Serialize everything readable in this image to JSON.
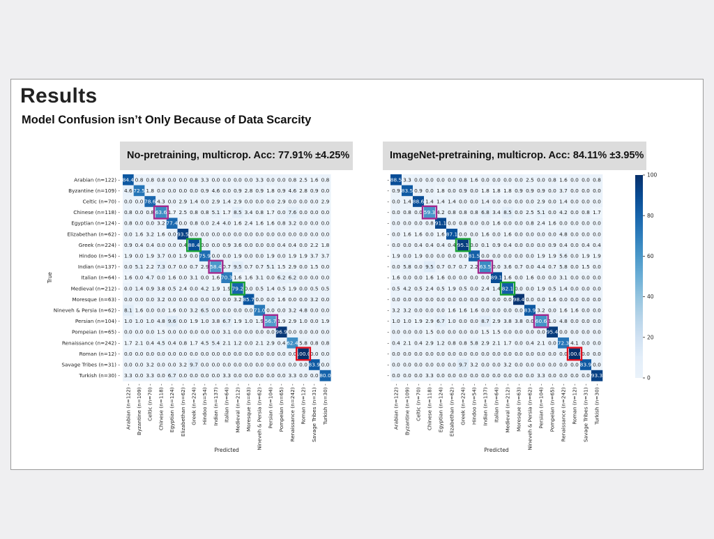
{
  "slide": {
    "title": "Results",
    "subtitle": "Model Confusion isn’t Only Because of Data Scarcity"
  },
  "colorbar": {
    "ticks": [
      "100",
      "80",
      "60",
      "40",
      "20",
      "0"
    ]
  },
  "chart_data": [
    {
      "type": "heatmap",
      "title": "No-pretraining, multicrop. Acc: 77.91% ±4.25%",
      "xlabel": "Predicted",
      "ylabel": "True",
      "categories": [
        "Arabian (n=122)",
        "Byzantine (n=109)",
        "Celtic (n=70)",
        "Chinese (n=118)",
        "Egyptian (n=124)",
        "Elizabethan (n=62)",
        "Greek (n=224)",
        "Hindoo (n=54)",
        "Indian (n=137)",
        "Italian (n=64)",
        "Medieval (n=212)",
        "Moresque (n=63)",
        "Nineveh & Persia (n=62)",
        "Persian (n=104)",
        "Pompeian (n=65)",
        "Renaissance (n=242)",
        "Roman (n=12)",
        "Savage Tribes (n=31)",
        "Turkish (n=30)"
      ],
      "values": [
        [
          "84.4",
          "0.8",
          "0.8",
          "0.8",
          "0.0",
          "0.0",
          "0.8",
          "3.3",
          "0.0",
          "0.0",
          "0.0",
          "0.0",
          "3.3",
          "0.0",
          "0.0",
          "0.8",
          "2.5",
          "1.6",
          "0.8"
        ],
        [
          "4.6",
          "72.5",
          "1.8",
          "0.0",
          "0.0",
          "0.0",
          "0.0",
          "0.9",
          "4.6",
          "0.0",
          "0.9",
          "2.8",
          "0.9",
          "1.8",
          "0.9",
          "4.6",
          "2.8",
          "0.9",
          "0.0"
        ],
        [
          "0.0",
          "0.0",
          "78.6",
          "4.3",
          "0.0",
          "2.9",
          "1.4",
          "0.0",
          "2.9",
          "1.4",
          "2.9",
          "0.0",
          "0.0",
          "0.0",
          "2.9",
          "0.0",
          "0.0",
          "0.0",
          "2.9"
        ],
        [
          "0.8",
          "0.0",
          "0.8",
          "63.6",
          "1.7",
          "2.5",
          "0.8",
          "0.8",
          "5.1",
          "1.7",
          "8.5",
          "3.4",
          "0.8",
          "1.7",
          "0.0",
          "7.6",
          "0.0",
          "0.0",
          "0.0"
        ],
        [
          "0.8",
          "0.0",
          "0.0",
          "3.2",
          "77.4",
          "0.0",
          "0.8",
          "0.0",
          "2.4",
          "4.0",
          "1.6",
          "2.4",
          "1.6",
          "1.6",
          "0.8",
          "3.2",
          "0.0",
          "0.0",
          "0.0"
        ],
        [
          "0.0",
          "1.6",
          "3.2",
          "1.6",
          "0.0",
          "93.5",
          "0.0",
          "0.0",
          "0.0",
          "0.0",
          "0.0",
          "0.0",
          "0.0",
          "0.0",
          "0.0",
          "0.0",
          "0.0",
          "0.0",
          "0.0"
        ],
        [
          "0.9",
          "0.4",
          "0.4",
          "0.0",
          "0.0",
          "0.4",
          "88.4",
          "0.0",
          "0.0",
          "0.9",
          "3.6",
          "0.0",
          "0.0",
          "0.0",
          "0.4",
          "0.4",
          "0.0",
          "2.2",
          "1.8"
        ],
        [
          "1.9",
          "0.0",
          "1.9",
          "3.7",
          "0.0",
          "1.9",
          "0.0",
          "75.9",
          "0.0",
          "0.0",
          "1.9",
          "0.0",
          "0.0",
          "1.9",
          "0.0",
          "1.9",
          "1.9",
          "3.7",
          "3.7"
        ],
        [
          "0.0",
          "5.1",
          "2.2",
          "7.3",
          "0.7",
          "0.0",
          "0.7",
          "2.9",
          "58.4",
          "0.7",
          "9.5",
          "0.7",
          "0.7",
          "5.1",
          "1.5",
          "2.9",
          "0.0",
          "1.5",
          "0.0"
        ],
        [
          "1.6",
          "0.0",
          "4.7",
          "0.0",
          "1.6",
          "0.0",
          "3.1",
          "0.0",
          "1.6",
          "70.3",
          "1.6",
          "1.6",
          "3.1",
          "0.0",
          "6.2",
          "6.2",
          "0.0",
          "0.0",
          "0.0"
        ],
        [
          "0.0",
          "1.4",
          "0.9",
          "3.8",
          "0.5",
          "2.4",
          "0.0",
          "4.2",
          "1.9",
          "1.9",
          "79.2",
          "0.0",
          "0.5",
          "1.4",
          "0.5",
          "1.9",
          "0.0",
          "0.5",
          "0.5"
        ],
        [
          "0.0",
          "0.0",
          "0.0",
          "3.2",
          "0.0",
          "0.0",
          "0.0",
          "0.0",
          "0.0",
          "0.0",
          "3.2",
          "85.7",
          "0.0",
          "0.0",
          "1.6",
          "0.0",
          "0.0",
          "3.2",
          "0.0"
        ],
        [
          "8.1",
          "1.6",
          "0.0",
          "0.0",
          "1.6",
          "0.0",
          "3.2",
          "6.5",
          "0.0",
          "0.0",
          "0.0",
          "0.0",
          "71.0",
          "0.0",
          "0.0",
          "3.2",
          "4.8",
          "0.0",
          "0.0"
        ],
        [
          "1.0",
          "1.0",
          "1.0",
          "4.8",
          "9.6",
          "0.0",
          "1.9",
          "1.0",
          "3.8",
          "6.7",
          "1.9",
          "1.0",
          "1.9",
          "56.7",
          "1.9",
          "2.9",
          "1.0",
          "0.0",
          "1.9"
        ],
        [
          "0.0",
          "0.0",
          "0.0",
          "1.5",
          "0.0",
          "0.0",
          "0.0",
          "0.0",
          "0.0",
          "3.1",
          "0.0",
          "0.0",
          "0.0",
          "0.0",
          "96.9",
          "0.0",
          "0.0",
          "0.0",
          "0.0"
        ],
        [
          "1.7",
          "2.1",
          "0.4",
          "4.5",
          "0.4",
          "0.8",
          "1.7",
          "4.5",
          "5.4",
          "2.1",
          "1.2",
          "0.0",
          "2.1",
          "2.9",
          "0.4",
          "62.4",
          "5.8",
          "0.8",
          "0.8"
        ],
        [
          "0.0",
          "0.0",
          "0.0",
          "0.0",
          "0.0",
          "0.0",
          "0.0",
          "0.0",
          "0.0",
          "0.0",
          "0.0",
          "0.0",
          "0.0",
          "0.0",
          "0.0",
          "0.0",
          "100.0",
          "0.0",
          "0.0"
        ],
        [
          "0.0",
          "0.0",
          "3.2",
          "0.0",
          "0.0",
          "3.2",
          "9.7",
          "0.0",
          "0.0",
          "0.0",
          "0.0",
          "0.0",
          "0.0",
          "0.0",
          "0.0",
          "0.0",
          "0.0",
          "83.9",
          "0.0"
        ],
        [
          "3.3",
          "0.0",
          "3.3",
          "0.0",
          "6.7",
          "0.0",
          "0.0",
          "0.0",
          "0.0",
          "3.3",
          "0.0",
          "0.0",
          "0.0",
          "0.0",
          "0.0",
          "3.3",
          "0.0",
          "0.0",
          "80.0"
        ]
      ],
      "highlights": [
        {
          "row": 3,
          "col": 3,
          "color": "#a0288e"
        },
        {
          "row": 6,
          "col": 6,
          "color": "#18a035"
        },
        {
          "row": 8,
          "col": 8,
          "color": "#a0288e"
        },
        {
          "row": 10,
          "col": 10,
          "color": "#18a035"
        },
        {
          "row": 13,
          "col": 13,
          "color": "#a0288e"
        },
        {
          "row": 16,
          "col": 16,
          "color": "#e01020"
        }
      ]
    },
    {
      "type": "heatmap",
      "title": "ImageNet-pretraining, multicrop. Acc: 84.11% ±3.95%",
      "xlabel": "Predicted",
      "ylabel": "",
      "categories": [
        "Arabian (n=122)",
        "Byzantine (n=109)",
        "Celtic (n=70)",
        "Chinese (n=118)",
        "Egyptian (n=124)",
        "Elizabethan (n=62)",
        "Greek (n=224)",
        "Hindoo (n=54)",
        "Indian (n=137)",
        "Italian (n=64)",
        "Medieval (n=212)",
        "Moresque (n=63)",
        "Nineveh & Persia (n=62)",
        "Persian (n=104)",
        "Pompeian (n=65)",
        "Renaissance (n=242)",
        "Roman (n=12)",
        "Savage Tribes (n=31)",
        "Turkish (n=30)"
      ],
      "values": [
        [
          "88.5",
          "3.3",
          "0.0",
          "0.0",
          "0.0",
          "0.0",
          "0.8",
          "1.6",
          "0.0",
          "0.0",
          "0.0",
          "0.0",
          "2.5",
          "0.0",
          "0.8",
          "1.6",
          "0.0",
          "0.0",
          "0.8"
        ],
        [
          "0.9",
          "83.5",
          "0.9",
          "0.0",
          "1.8",
          "0.0",
          "0.9",
          "0.0",
          "1.8",
          "1.8",
          "1.8",
          "0.9",
          "0.9",
          "0.9",
          "0.0",
          "3.7",
          "0.0",
          "0.0",
          "0.0"
        ],
        [
          "0.0",
          "1.4",
          "88.6",
          "1.4",
          "1.4",
          "1.4",
          "0.0",
          "0.0",
          "1.4",
          "0.0",
          "0.0",
          "0.0",
          "0.0",
          "2.9",
          "0.0",
          "1.4",
          "0.0",
          "0.0",
          "0.0"
        ],
        [
          "0.0",
          "0.8",
          "0.0",
          "59.3",
          "4.2",
          "0.8",
          "0.8",
          "0.8",
          "6.8",
          "3.4",
          "8.5",
          "0.0",
          "2.5",
          "5.1",
          "0.0",
          "4.2",
          "0.0",
          "0.8",
          "1.7"
        ],
        [
          "0.0",
          "0.0",
          "0.0",
          "0.8",
          "91.1",
          "0.0",
          "0.8",
          "0.0",
          "0.0",
          "1.6",
          "0.0",
          "0.0",
          "0.8",
          "2.4",
          "1.6",
          "0.0",
          "0.0",
          "0.0",
          "0.0"
        ],
        [
          "0.0",
          "1.6",
          "1.6",
          "0.0",
          "1.6",
          "87.1",
          "0.0",
          "0.0",
          "1.6",
          "0.0",
          "1.6",
          "0.0",
          "0.0",
          "0.0",
          "0.0",
          "4.8",
          "0.0",
          "0.0",
          "0.0"
        ],
        [
          "0.0",
          "0.0",
          "0.4",
          "0.4",
          "0.4",
          "0.4",
          "95.1",
          "0.0",
          "0.1",
          "0.9",
          "0.4",
          "0.0",
          "0.0",
          "0.0",
          "0.9",
          "0.4",
          "0.0",
          "0.4",
          "0.4"
        ],
        [
          "1.9",
          "0.0",
          "1.9",
          "0.0",
          "0.0",
          "0.0",
          "0.0",
          "81.5",
          "0.0",
          "0.0",
          "0.0",
          "0.0",
          "0.0",
          "1.9",
          "1.9",
          "5.6",
          "0.0",
          "1.9",
          "1.9"
        ],
        [
          "0.0",
          "5.8",
          "0.0",
          "9.5",
          "0.7",
          "0.7",
          "0.7",
          "2.2",
          "63.5",
          "0.0",
          "3.6",
          "0.7",
          "0.0",
          "4.4",
          "0.7",
          "5.8",
          "0.0",
          "1.5",
          "0.0"
        ],
        [
          "1.6",
          "0.0",
          "0.0",
          "1.6",
          "1.6",
          "0.0",
          "0.0",
          "0.0",
          "0.0",
          "89.1",
          "1.6",
          "0.0",
          "1.6",
          "0.0",
          "0.0",
          "3.1",
          "0.0",
          "0.0",
          "0.0"
        ],
        [
          "0.5",
          "4.2",
          "0.5",
          "2.4",
          "0.5",
          "1.9",
          "0.5",
          "0.0",
          "2.4",
          "1.4",
          "82.1",
          "0.0",
          "0.0",
          "1.9",
          "0.5",
          "1.4",
          "0.0",
          "0.0",
          "0.0"
        ],
        [
          "0.0",
          "0.0",
          "0.0",
          "0.0",
          "0.0",
          "0.0",
          "0.0",
          "0.0",
          "0.0",
          "0.0",
          "0.0",
          "98.4",
          "0.0",
          "0.0",
          "1.6",
          "0.0",
          "0.0",
          "0.0",
          "0.0"
        ],
        [
          "3.2",
          "3.2",
          "0.0",
          "0.0",
          "0.0",
          "1.6",
          "1.6",
          "1.6",
          "0.0",
          "0.0",
          "0.0",
          "0.0",
          "83.9",
          "3.2",
          "0.0",
          "1.6",
          "1.6",
          "0.0",
          "0.0"
        ],
        [
          "1.0",
          "1.0",
          "1.9",
          "2.9",
          "6.7",
          "1.0",
          "0.0",
          "0.0",
          "8.7",
          "2.9",
          "3.8",
          "3.8",
          "0.0",
          "60.6",
          "1.0",
          "4.8",
          "0.0",
          "0.0",
          "0.0"
        ],
        [
          "0.0",
          "0.0",
          "0.0",
          "1.5",
          "0.0",
          "0.0",
          "0.0",
          "0.0",
          "1.5",
          "1.5",
          "0.0",
          "0.0",
          "0.0",
          "0.0",
          "95.4",
          "0.0",
          "0.0",
          "0.0",
          "0.0"
        ],
        [
          "0.4",
          "2.1",
          "0.4",
          "2.9",
          "1.2",
          "0.8",
          "0.8",
          "5.8",
          "2.9",
          "2.1",
          "1.7",
          "0.0",
          "0.4",
          "2.1",
          "0.0",
          "72.3",
          "4.1",
          "0.0",
          "0.0"
        ],
        [
          "0.0",
          "0.0",
          "0.0",
          "0.0",
          "0.0",
          "0.0",
          "0.0",
          "0.0",
          "0.0",
          "0.0",
          "0.0",
          "0.0",
          "0.0",
          "0.0",
          "0.0",
          "0.0",
          "100.0",
          "0.0",
          "0.0"
        ],
        [
          "0.0",
          "0.0",
          "0.0",
          "0.0",
          "0.0",
          "0.0",
          "9.7",
          "3.2",
          "0.0",
          "0.0",
          "3.2",
          "0.0",
          "0.0",
          "0.0",
          "0.0",
          "0.0",
          "0.0",
          "83.9",
          "0.0"
        ],
        [
          "0.0",
          "0.0",
          "0.0",
          "3.3",
          "0.0",
          "0.0",
          "0.0",
          "0.0",
          "0.0",
          "0.0",
          "0.0",
          "0.0",
          "0.0",
          "3.3",
          "0.0",
          "0.0",
          "0.0",
          "0.0",
          "93.3"
        ]
      ],
      "highlights": [
        {
          "row": 3,
          "col": 3,
          "color": "#a0288e"
        },
        {
          "row": 6,
          "col": 6,
          "color": "#18a035"
        },
        {
          "row": 8,
          "col": 8,
          "color": "#a0288e"
        },
        {
          "row": 10,
          "col": 10,
          "color": "#18a035"
        },
        {
          "row": 13,
          "col": 13,
          "color": "#a0288e"
        },
        {
          "row": 16,
          "col": 16,
          "color": "#e01020"
        }
      ]
    }
  ]
}
